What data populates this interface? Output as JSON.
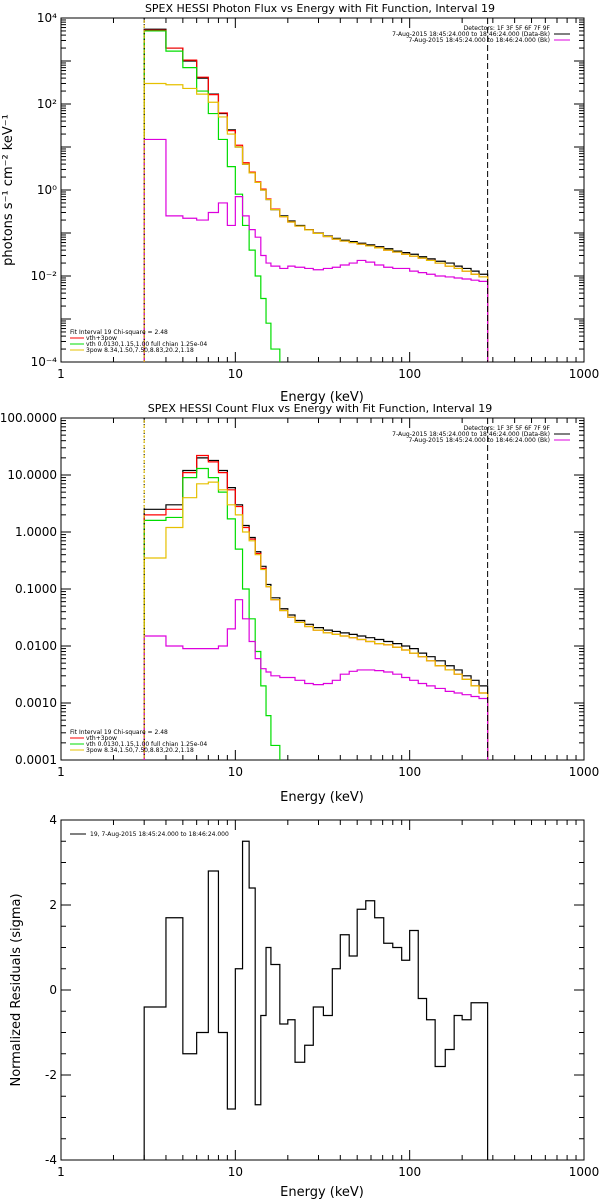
{
  "panels": {
    "photon": {
      "title": "SPEX HESSI Photon Flux vs Energy with Fit Function, Interval 19",
      "xlabel": "Energy (keV)",
      "ylabel": "photons s⁻¹ cm⁻² keV⁻¹",
      "xticks": [
        "1",
        "10",
        "100",
        "1000"
      ],
      "yticks": [
        "10⁻⁴",
        "10⁻²",
        "10⁰",
        "10²",
        "10⁴"
      ],
      "legend_right": [
        "Detectors: 1F 3F 5F 6F 7F 9F",
        "7-Aug-2015 18:45:24.000 to 18:46:24.000 (Data-Bk)",
        "7-Aug-2015 18:45:24.000 to 18:46:24.000 (Bk)"
      ],
      "legend_left": [
        "Fit Interval 19    Chi-square = 2.48",
        "vth+3pow",
        "vth 0.0130,1.15,1.00  full chian 1.25e-04",
        "3pow 8.34,1.50,7.50,8.83,20.2,1.18"
      ]
    },
    "count": {
      "title": "SPEX HESSI Count Flux vs Energy with Fit Function, Interval 19",
      "xlabel": "Energy (keV)",
      "xticks": [
        "1",
        "10",
        "100",
        "1000"
      ],
      "yticks": [
        "0.0001",
        "0.0010",
        "0.0100",
        "0.1000",
        "1.0000",
        "10.0000",
        "100.0000"
      ],
      "legend_right": [
        "Detectors: 1F 3F 5F 6F 7F 9F",
        "7-Aug-2015 18:45:24.000 to 18:46:24.000 (Data-Bk)",
        "7-Aug-2015 18:45:24.000 to 18:46:24.000 (Bk)"
      ],
      "legend_left": [
        "Fit Interval 19    Chi-square = 2.48",
        "vth+3pow",
        "vth 0.0130,1.15,1.00  full chian 1.25e-04",
        "3pow 8.34,1.50,7.50,8.83,20.2,1.18"
      ]
    },
    "residual": {
      "xlabel": "Energy (keV)",
      "ylabel": "Normalized Residuals (sigma)",
      "xticks": [
        "1",
        "10",
        "100",
        "1000"
      ],
      "yticks": [
        "-4",
        "-2",
        "0",
        "2",
        "4"
      ],
      "legend": "19,  7-Aug-2015 18:45:24.000 to 18:46:24.000"
    }
  },
  "colors": {
    "data": "#000000",
    "total": "#ff0000",
    "vth": "#00dd00",
    "pow": "#e6c000",
    "bk": "#dd00dd"
  },
  "chart_data": [
    {
      "type": "line",
      "title": "SPEX HESSI Photon Flux vs Energy with Fit Function, Interval 19",
      "xlabel": "Energy (keV)",
      "ylabel": "photons s⁻¹ cm⁻² keV⁻¹",
      "xscale": "log",
      "yscale": "log",
      "xlim": [
        1,
        1000
      ],
      "ylim": [
        0.0001,
        10000
      ],
      "edges": [
        3,
        4,
        5,
        6,
        7,
        8,
        9,
        10,
        11,
        12,
        13,
        14,
        15,
        16,
        18,
        20,
        22,
        25,
        28,
        32,
        36,
        40,
        45,
        50,
        56,
        63,
        71,
        80,
        90,
        100,
        112,
        125,
        140,
        160,
        180,
        200,
        225,
        250,
        280
      ],
      "series": [
        {
          "name": "data",
          "values": [
            5500,
            2000,
            1000,
            400,
            170,
            60,
            25,
            10,
            4,
            2.5,
            1.5,
            1,
            0.6,
            0.35,
            0.25,
            0.19,
            0.15,
            0.12,
            0.1,
            0.085,
            0.075,
            0.068,
            0.063,
            0.058,
            0.053,
            0.048,
            0.043,
            0.038,
            0.035,
            0.032,
            0.028,
            0.025,
            0.022,
            0.02,
            0.017,
            0.015,
            0.013,
            0.011
          ]
        },
        {
          "name": "vth+3pow",
          "values": [
            5200,
            2000,
            1050,
            420,
            165,
            62,
            24,
            11,
            4.3,
            2.6,
            1.55,
            1.05,
            0.62,
            0.36,
            0.24,
            0.18,
            0.145,
            0.118,
            0.098,
            0.083,
            0.072,
            0.065,
            0.06,
            0.055,
            0.05,
            0.045,
            0.04,
            0.036,
            0.032,
            0.029,
            0.026,
            0.023,
            0.02,
            0.017,
            0.015,
            0.013,
            0.011,
            0.0095
          ]
        },
        {
          "name": "vth",
          "values": [
            5000,
            1700,
            700,
            200,
            60,
            15,
            3.5,
            0.8,
            0.15,
            0.04,
            0.01,
            0.003,
            0.0008,
            0.0002,
            5e-05
          ]
        },
        {
          "name": "3pow",
          "values": [
            300,
            280,
            230,
            170,
            110,
            50,
            20,
            10,
            4,
            2.5,
            1.5,
            1,
            0.6,
            0.35,
            0.24,
            0.18,
            0.145,
            0.118,
            0.098,
            0.083,
            0.072,
            0.065,
            0.06,
            0.055,
            0.05,
            0.045,
            0.04,
            0.036,
            0.032,
            0.029,
            0.026,
            0.023,
            0.02,
            0.017,
            0.015,
            0.013,
            0.011,
            0.0095
          ]
        },
        {
          "name": "Bk",
          "values": [
            15,
            0.25,
            0.22,
            0.2,
            0.3,
            0.5,
            0.15,
            0.7,
            0.25,
            0.12,
            0.08,
            0.03,
            0.02,
            0.017,
            0.015,
            0.017,
            0.016,
            0.015,
            0.014,
            0.015,
            0.016,
            0.018,
            0.02,
            0.023,
            0.021,
            0.018,
            0.016,
            0.015,
            0.015,
            0.013,
            0.012,
            0.011,
            0.01,
            0.0095,
            0.009,
            0.0085,
            0.008,
            0.0075
          ]
        }
      ]
    },
    {
      "type": "line",
      "title": "SPEX HESSI Count Flux vs Energy with Fit Function, Interval 19",
      "xlabel": "Energy (keV)",
      "xscale": "log",
      "yscale": "log",
      "xlim": [
        1,
        1000
      ],
      "ylim": [
        0.0001,
        100
      ],
      "edges": [
        3,
        4,
        5,
        6,
        7,
        8,
        9,
        10,
        11,
        12,
        13,
        14,
        15,
        16,
        18,
        20,
        22,
        25,
        28,
        32,
        36,
        40,
        45,
        50,
        56,
        63,
        71,
        80,
        90,
        100,
        112,
        125,
        140,
        160,
        180,
        200,
        225,
        250,
        280
      ],
      "series": [
        {
          "name": "data",
          "values": [
            2.5,
            3,
            12,
            20,
            18,
            12,
            6,
            3,
            1.3,
            0.8,
            0.45,
            0.25,
            0.12,
            0.07,
            0.045,
            0.035,
            0.028,
            0.024,
            0.021,
            0.019,
            0.018,
            0.017,
            0.016,
            0.015,
            0.014,
            0.013,
            0.012,
            0.011,
            0.01,
            0.009,
            0.0075,
            0.0065,
            0.0055,
            0.0045,
            0.0038,
            0.003,
            0.0025,
            0.002
          ]
        },
        {
          "name": "vth+3pow",
          "values": [
            2,
            2.5,
            11,
            22,
            17,
            11,
            5.5,
            2.8,
            1.2,
            0.75,
            0.42,
            0.23,
            0.11,
            0.065,
            0.042,
            0.032,
            0.026,
            0.022,
            0.019,
            0.017,
            0.016,
            0.015,
            0.014,
            0.013,
            0.012,
            0.011,
            0.0105,
            0.0095,
            0.0085,
            0.0075,
            0.0065,
            0.0055,
            0.0045,
            0.0038,
            0.0032,
            0.0026,
            0.002,
            0.0015
          ]
        },
        {
          "name": "vth",
          "values": [
            1.6,
            1.8,
            9,
            13,
            9,
            5,
            1.7,
            0.5,
            0.1,
            0.03,
            0.008,
            0.002,
            0.0006,
            0.00018,
            5e-05
          ]
        },
        {
          "name": "3pow",
          "values": [
            0.35,
            1.2,
            4,
            7,
            7.5,
            5.5,
            3,
            2,
            1,
            0.7,
            0.4,
            0.22,
            0.11,
            0.065,
            0.042,
            0.032,
            0.026,
            0.022,
            0.019,
            0.017,
            0.016,
            0.015,
            0.014,
            0.013,
            0.012,
            0.011,
            0.0105,
            0.0095,
            0.0085,
            0.0075,
            0.0065,
            0.0055,
            0.0045,
            0.0038,
            0.0032,
            0.0026,
            0.002,
            0.0015
          ]
        },
        {
          "name": "Bk",
          "values": [
            0.015,
            0.01,
            0.009,
            0.009,
            0.009,
            0.01,
            0.02,
            0.065,
            0.03,
            0.012,
            0.006,
            0.004,
            0.0035,
            0.003,
            0.0028,
            0.0028,
            0.0025,
            0.0022,
            0.0021,
            0.0022,
            0.0025,
            0.0032,
            0.0036,
            0.0038,
            0.0038,
            0.0037,
            0.0035,
            0.0032,
            0.0028,
            0.0025,
            0.0022,
            0.002,
            0.0018,
            0.0016,
            0.0015,
            0.0014,
            0.0013,
            0.0012
          ]
        }
      ]
    },
    {
      "type": "line",
      "xlabel": "Energy (keV)",
      "ylabel": "Normalized Residuals (sigma)",
      "xscale": "log",
      "xlim": [
        1,
        1000
      ],
      "ylim": [
        -4,
        4
      ],
      "edges": [
        3,
        4,
        5,
        6,
        7,
        8,
        9,
        10,
        11,
        12,
        13,
        14,
        15,
        16,
        18,
        20,
        22,
        25,
        28,
        32,
        36,
        40,
        45,
        50,
        56,
        63,
        71,
        80,
        90,
        100,
        112,
        125,
        140,
        160,
        180,
        200,
        225,
        250,
        280
      ],
      "series": [
        {
          "name": "19,  7-Aug-2015 18:45:24.000 to 18:46:24.000",
          "values": [
            -0.4,
            1.7,
            -1.5,
            -1.0,
            2.8,
            -1.0,
            -2.8,
            0.5,
            3.5,
            2.4,
            -2.7,
            -0.6,
            1.0,
            0.6,
            -0.8,
            -0.7,
            -1.7,
            -1.3,
            -0.4,
            -0.6,
            0.5,
            1.3,
            0.8,
            1.9,
            2.1,
            1.7,
            1.1,
            1.0,
            0.7,
            1.4,
            -0.2,
            -0.7,
            -1.8,
            -1.4,
            -0.6,
            -0.7,
            -0.3,
            -0.3
          ]
        }
      ]
    }
  ]
}
